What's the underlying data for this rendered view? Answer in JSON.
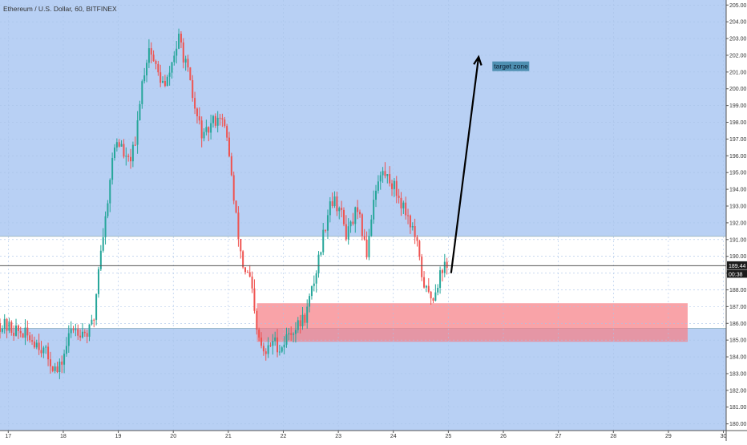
{
  "chart_data": {
    "type": "candlestick",
    "title": "Ethereum / U.S. Dollar, 60, BITFINEX",
    "x_ticks": [
      "17",
      "18",
      "19",
      "20",
      "21",
      "22",
      "23",
      "24",
      "25",
      "26",
      "27",
      "28",
      "29",
      "30"
    ],
    "y_ticks": [
      180,
      181,
      182,
      183,
      184,
      185,
      186,
      187,
      188,
      189,
      190,
      191,
      192,
      193,
      194,
      195,
      196,
      197,
      198,
      199,
      200,
      201,
      202,
      203,
      204,
      205
    ],
    "ylim": [
      179.6,
      205.3
    ],
    "xlim": [
      16.85,
      30.05
    ],
    "last_price": "189.44",
    "countdown": "00:38",
    "zones": {
      "upper_band": {
        "low": 185.7,
        "high": 191.2
      },
      "demand_zone": {
        "x_start": 21.52,
        "x_end": 29.35,
        "low": 184.9,
        "high": 187.2
      }
    },
    "arrow": {
      "from": [
        25.05,
        189.0
      ],
      "to": [
        25.55,
        201.9
      ]
    },
    "annotation": {
      "text": "target zone",
      "x": 25.8,
      "y": 201.2
    },
    "price_path": [
      [
        16.85,
        186.0
      ],
      [
        17.3,
        185.4
      ],
      [
        17.6,
        184.8
      ],
      [
        17.95,
        183.0
      ],
      [
        18.2,
        185.8
      ],
      [
        18.5,
        185.4
      ],
      [
        18.6,
        186.3
      ],
      [
        18.7,
        190.0
      ],
      [
        18.8,
        192.0
      ],
      [
        18.9,
        195.0
      ],
      [
        19.0,
        197.0
      ],
      [
        19.1,
        196.5
      ],
      [
        19.2,
        195.5
      ],
      [
        19.35,
        196.5
      ],
      [
        19.45,
        200.0
      ],
      [
        19.6,
        202.5
      ],
      [
        19.75,
        201.0
      ],
      [
        19.9,
        200.0
      ],
      [
        20.05,
        202.0
      ],
      [
        20.15,
        203.0
      ],
      [
        20.3,
        201.0
      ],
      [
        20.45,
        198.5
      ],
      [
        20.6,
        197.0
      ],
      [
        20.75,
        198.0
      ],
      [
        20.9,
        198.5
      ],
      [
        21.05,
        196.5
      ],
      [
        21.15,
        193.0
      ],
      [
        21.3,
        189.5
      ],
      [
        21.45,
        188.5
      ],
      [
        21.55,
        185.5
      ],
      [
        21.7,
        184.0
      ],
      [
        21.85,
        185.0
      ],
      [
        22.0,
        184.5
      ],
      [
        22.15,
        185.5
      ],
      [
        22.3,
        185.8
      ],
      [
        22.45,
        186.5
      ],
      [
        22.6,
        188.5
      ],
      [
        22.75,
        191.0
      ],
      [
        22.9,
        193.5
      ],
      [
        23.05,
        193.0
      ],
      [
        23.2,
        191.2
      ],
      [
        23.35,
        192.5
      ],
      [
        23.45,
        192.0
      ],
      [
        23.55,
        190.0
      ],
      [
        23.7,
        194.0
      ],
      [
        23.85,
        195.0
      ],
      [
        24.0,
        194.5
      ],
      [
        24.15,
        193.5
      ],
      [
        24.3,
        192.5
      ],
      [
        24.45,
        191.0
      ],
      [
        24.55,
        189.0
      ],
      [
        24.65,
        187.8
      ],
      [
        24.75,
        187.5
      ],
      [
        24.85,
        188.5
      ],
      [
        24.95,
        189.5
      ],
      [
        25.0,
        189.2
      ]
    ]
  }
}
